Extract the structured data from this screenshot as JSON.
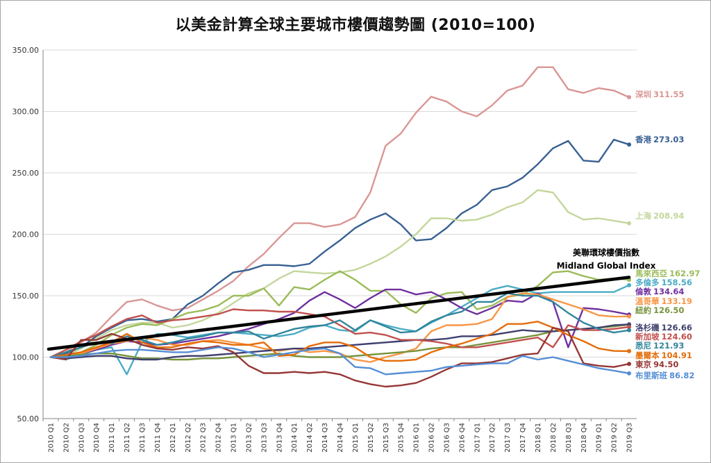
{
  "chart_data": {
    "type": "line",
    "title": "以美金計算全球主要城市樓價趨勢圖 (2010=100)",
    "xlabel": "",
    "ylabel": "",
    "ylim": [
      50,
      350
    ],
    "yticks": [
      "50.00",
      "100.00",
      "150.00",
      "200.00",
      "250.00",
      "300.00",
      "350.00"
    ],
    "grid": true,
    "categories": [
      "2010 Q1",
      "2010 Q2",
      "2010 Q3",
      "2010 Q4",
      "2011 Q1",
      "2011 Q2",
      "2011 Q3",
      "2011 Q4",
      "2012 Q1",
      "2012 Q2",
      "2012 Q3",
      "2012 Q4",
      "2013 Q1",
      "2013 Q2",
      "2013 Q3",
      "2013 Q4",
      "2014 Q1",
      "2014 Q2",
      "2014 Q3",
      "2014 Q4",
      "2015 Q1",
      "2015 Q2",
      "2015 Q3",
      "2015 Q4",
      "2016 Q1",
      "2016 Q2",
      "2016 Q3",
      "2016 Q4",
      "2017 Q1",
      "2017 Q2",
      "2017 Q3",
      "2017 Q4",
      "2018 Q1",
      "2018 Q2",
      "2018 Q3",
      "2018 Q4",
      "2019 Q1",
      "2019 Q2",
      "2019 Q3"
    ],
    "trendline": {
      "line1": "美聯環球樓價指數",
      "line2": "Midland Global Index",
      "start": 106.5,
      "end": 165,
      "color": "#000000"
    },
    "series": [
      {
        "name": "深圳",
        "end_label": "311.55",
        "color": "#d99694",
        "values": [
          100,
          104,
          112,
          120,
          133,
          145,
          147,
          142,
          138,
          140,
          147,
          154,
          162,
          174,
          184,
          197,
          209,
          209,
          206,
          208,
          214,
          234,
          272,
          282,
          299,
          312,
          308,
          300,
          296,
          305,
          317,
          321,
          336,
          336,
          318,
          315,
          319,
          317,
          311.55
        ]
      },
      {
        "name": "香港",
        "end_label": "273.03",
        "color": "#376092",
        "values": [
          100,
          103,
          108,
          117,
          124,
          130,
          131,
          129,
          131,
          143,
          150,
          160,
          169,
          171,
          175,
          175,
          174,
          176,
          186,
          195,
          205,
          212,
          217,
          208,
          195,
          196,
          205,
          217,
          224,
          236,
          239,
          246,
          257,
          270,
          276,
          260,
          259,
          277,
          273.03
        ]
      },
      {
        "name": "上海",
        "end_label": "208.94",
        "color": "#c3d69b",
        "values": [
          100,
          101,
          107,
          115,
          122,
          126,
          128,
          128,
          124,
          126,
          130,
          136,
          144,
          152,
          156,
          164,
          170,
          169,
          168,
          169,
          171,
          176,
          182,
          190,
          200,
          213,
          213,
          211,
          212,
          216,
          222,
          226,
          236,
          234,
          218,
          212,
          213,
          211,
          208.94
        ]
      },
      {
        "name": "馬來西亞",
        "end_label": "162.97",
        "color": "#9bbb59",
        "values": [
          100,
          101,
          104,
          110,
          118,
          124,
          127,
          126,
          131,
          136,
          138,
          142,
          150,
          150,
          156,
          142,
          157,
          155,
          163,
          170,
          163,
          154,
          154,
          143,
          136,
          148,
          152,
          153,
          139,
          142,
          149,
          151,
          158,
          169,
          170,
          166,
          163,
          164,
          162.97
        ]
      },
      {
        "name": "多倫多",
        "end_label": "158.56",
        "color": "#4bacc6",
        "values": [
          100,
          98,
          102,
          106,
          108,
          86,
          112,
          119,
          118,
          116,
          118,
          120,
          120,
          119,
          118,
          117,
          119,
          124,
          126,
          122,
          121,
          130,
          126,
          123,
          121,
          128,
          134,
          141,
          148,
          155,
          158,
          155,
          152,
          153,
          153,
          153,
          153,
          153,
          158.56
        ]
      },
      {
        "name": "倫敦",
        "end_label": "134.64",
        "color": "#7030a0",
        "values": [
          100,
          99,
          103,
          106,
          110,
          113,
          112,
          110,
          111,
          113,
          115,
          117,
          120,
          123,
          127,
          131,
          136,
          146,
          153,
          147,
          140,
          148,
          155,
          155,
          151,
          153,
          147,
          140,
          135,
          140,
          146,
          145,
          152,
          145,
          108,
          140,
          139,
          137,
          134.64
        ]
      },
      {
        "name": "溫哥華",
        "end_label": "133.19",
        "color": "#f79646",
        "values": [
          100,
          100,
          103,
          107,
          111,
          113,
          116,
          114,
          110,
          110,
          113,
          114,
          112,
          110,
          107,
          105,
          107,
          104,
          105,
          103,
          98,
          96,
          100,
          103,
          107,
          121,
          126,
          126,
          127,
          131,
          149,
          152,
          151,
          147,
          143,
          139,
          134,
          133,
          133.19
        ]
      },
      {
        "name": "紐約",
        "end_label": "126.50",
        "color": "#77933c",
        "values": [
          100,
          101,
          102,
          103,
          103,
          101,
          99,
          99,
          98,
          98,
          99,
          99,
          100,
          101,
          102,
          103,
          101,
          100,
          100,
          100,
          101,
          102,
          103,
          104,
          105,
          107,
          108,
          108,
          110,
          112,
          114,
          116,
          118,
          121,
          122,
          123,
          124,
          125,
          126.5
        ]
      },
      {
        "name": "洛杉磯",
        "end_label": "126.66",
        "color": "#3f3f6f",
        "values": [
          100,
          99,
          100,
          101,
          101,
          99,
          98,
          98,
          100,
          101,
          101,
          102,
          103,
          104,
          105,
          106,
          107,
          107,
          108,
          109,
          110,
          111,
          112,
          113,
          114,
          114,
          115,
          117,
          117,
          118,
          120,
          122,
          121,
          121,
          122,
          123,
          124,
          126,
          126.66
        ]
      },
      {
        "name": "新加坡",
        "end_label": "124.60",
        "color": "#c0504d",
        "values": [
          100,
          106,
          113,
          118,
          125,
          131,
          134,
          128,
          130,
          131,
          133,
          135,
          139,
          138,
          138,
          137,
          137,
          135,
          133,
          126,
          119,
          120,
          118,
          114,
          114,
          113,
          111,
          108,
          108,
          110,
          112,
          114,
          116,
          108,
          126,
          122,
          122,
          123,
          124.6
        ]
      },
      {
        "name": "悉尼",
        "end_label": "121.93",
        "color": "#31859c",
        "values": [
          100,
          104,
          108,
          112,
          111,
          117,
          114,
          110,
          112,
          115,
          117,
          120,
          120,
          121,
          115,
          119,
          123,
          125,
          126,
          130,
          122,
          130,
          125,
          120,
          121,
          129,
          134,
          137,
          145,
          145,
          152,
          150,
          150,
          145,
          136,
          128,
          123,
          120,
          121.93
        ]
      },
      {
        "name": "墨爾本",
        "end_label": "104.91",
        "color": "#e46c0a",
        "values": [
          100,
          102,
          104,
          108,
          112,
          119,
          112,
          108,
          108,
          111,
          113,
          112,
          110,
          110,
          112,
          101,
          102,
          109,
          112,
          112,
          108,
          100,
          97,
          97,
          98,
          104,
          108,
          111,
          115,
          119,
          127,
          127,
          129,
          124,
          118,
          113,
          107,
          105,
          104.91
        ]
      },
      {
        "name": "東京",
        "end_label": "94.50",
        "color": "#953735",
        "values": [
          100,
          98,
          114,
          114,
          119,
          115,
          110,
          107,
          106,
          108,
          107,
          109,
          104,
          93,
          87,
          87,
          88,
          87,
          88,
          86,
          81,
          78,
          76,
          77,
          79,
          84,
          90,
          95,
          95,
          96,
          99,
          102,
          103,
          124,
          121,
          95,
          93,
          92,
          94.5
        ]
      },
      {
        "name": "布里斯班",
        "end_label": "86.82",
        "color": "#558ed5",
        "values": [
          100,
          100,
          101,
          103,
          105,
          106,
          106,
          105,
          104,
          104,
          106,
          108,
          107,
          104,
          100,
          102,
          104,
          106,
          107,
          103,
          92,
          91,
          86,
          87,
          88,
          89,
          92,
          93,
          94,
          95,
          95,
          101,
          98,
          100,
          97,
          94,
          91,
          89,
          86.82
        ]
      }
    ]
  }
}
